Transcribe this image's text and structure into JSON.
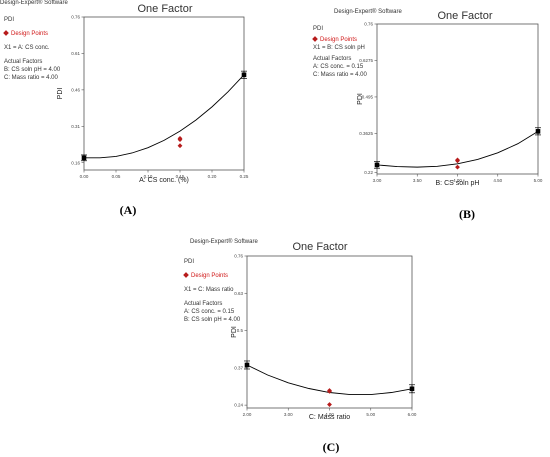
{
  "panels": [
    {
      "software": "Design-Expert® Software",
      "response": "PDI",
      "design_points_label": "Design Points",
      "x1_label": "X1 = A: CS conc.",
      "actual_factors_title": "Actual Factors",
      "actual_factors": [
        "B: CS soln pH = 4.00",
        "C: Mass ratio = 4.00"
      ],
      "panel_label": "(A)"
    },
    {
      "software": "Design-Expert® Software",
      "response": "PDI",
      "design_points_label": "Design Points",
      "x1_label": "X1 = B: CS soln pH",
      "actual_factors_title": "Actual Factors",
      "actual_factors": [
        "A: CS conc. = 0.15",
        "C: Mass ratio = 4.00"
      ],
      "panel_label": "(B)"
    },
    {
      "software": "Design-Expert® Software",
      "response": "PDI",
      "design_points_label": "Design Points",
      "x1_label": "X1 = C: Mass ratio",
      "actual_factors_title": "Actual Factors",
      "actual_factors": [
        "A: CS conc. = 0.15",
        "B: CS soln pH = 4.00"
      ],
      "panel_label": "(C)"
    }
  ],
  "colors": {
    "curve": "#000000",
    "design_point": "#b71c1c",
    "error_bar": "#000000"
  },
  "chart_data": [
    {
      "type": "line",
      "title": "One Factor",
      "xlabel": "A: CS conc. (%)",
      "ylabel": "PDI",
      "xlim": [
        0,
        0.25
      ],
      "ylim": [
        0.13,
        0.76
      ],
      "xticks": [
        0,
        0.05,
        0.1,
        0.15,
        0.2,
        0.25
      ],
      "xtick_labels": [
        "0.00",
        "0.05",
        "0.10",
        "0.15",
        "0.20",
        "0.25"
      ],
      "yticks": [
        0.16,
        0.31,
        0.46,
        0.61,
        0.76
      ],
      "ytick_labels": [
        "0.16",
        "0.31",
        "0.46",
        "0.61",
        "0.76"
      ],
      "curve": {
        "x": [
          0,
          0.025,
          0.05,
          0.075,
          0.1,
          0.125,
          0.15,
          0.175,
          0.2,
          0.225,
          0.25
        ],
        "y": [
          0.18,
          0.18,
          0.186,
          0.2,
          0.222,
          0.252,
          0.29,
          0.336,
          0.39,
          0.452,
          0.522
        ]
      },
      "mean_points": [
        {
          "x": 0,
          "y": 0.18,
          "err": 0.012
        },
        {
          "x": 0.25,
          "y": 0.522,
          "err": 0.015
        }
      ],
      "design_points": [
        {
          "x": 0.15,
          "y": 0.255
        },
        {
          "x": 0.15,
          "y": 0.26
        },
        {
          "x": 0.15,
          "y": 0.23
        }
      ]
    },
    {
      "type": "line",
      "title": "One Factor",
      "xlabel": "B: CS soln pH",
      "ylabel": "PDI",
      "xlim": [
        3,
        5
      ],
      "ylim": [
        0.215,
        0.76
      ],
      "xticks": [
        3,
        3.5,
        4,
        4.5,
        5
      ],
      "xtick_labels": [
        "3.00",
        "3.50",
        "4.00",
        "4.50",
        "5.00"
      ],
      "yticks": [
        0.22,
        0.3625,
        0.495,
        0.6275,
        0.76
      ],
      "ytick_labels": [
        "0.22",
        "0.3625",
        "0.495",
        "0.6275",
        "0.76"
      ],
      "curve": {
        "x": [
          3,
          3.25,
          3.5,
          3.75,
          4,
          4.25,
          4.5,
          4.75,
          5
        ],
        "y": [
          0.248,
          0.242,
          0.24,
          0.243,
          0.252,
          0.268,
          0.292,
          0.325,
          0.37
        ]
      },
      "mean_points": [
        {
          "x": 3,
          "y": 0.248,
          "err": 0.012
        },
        {
          "x": 5,
          "y": 0.37,
          "err": 0.013
        }
      ],
      "design_points": [
        {
          "x": 4,
          "y": 0.263
        },
        {
          "x": 4,
          "y": 0.266
        },
        {
          "x": 4,
          "y": 0.24
        }
      ]
    },
    {
      "type": "line",
      "title": "One Factor",
      "xlabel": "C: Mass ratio",
      "ylabel": "PDI",
      "xlim": [
        2,
        6
      ],
      "ylim": [
        0.23,
        0.76
      ],
      "xticks": [
        2,
        3,
        4,
        5,
        6
      ],
      "xtick_labels": [
        "2.00",
        "3.00",
        "4.00",
        "5.00",
        "6.00"
      ],
      "yticks": [
        0.24,
        0.37,
        0.5,
        0.63,
        0.76
      ],
      "ytick_labels": [
        "0.24",
        "0.37",
        "0.5",
        "0.63",
        "0.76"
      ],
      "curve": {
        "x": [
          2,
          2.5,
          3,
          3.5,
          4,
          4.5,
          5,
          5.5,
          6
        ],
        "y": [
          0.38,
          0.345,
          0.318,
          0.298,
          0.284,
          0.277,
          0.277,
          0.284,
          0.297
        ]
      },
      "mean_points": [
        {
          "x": 2,
          "y": 0.38,
          "err": 0.014
        },
        {
          "x": 6,
          "y": 0.297,
          "err": 0.014
        }
      ],
      "design_points": [
        {
          "x": 4,
          "y": 0.288
        },
        {
          "x": 4,
          "y": 0.291
        },
        {
          "x": 4,
          "y": 0.242
        }
      ]
    }
  ]
}
